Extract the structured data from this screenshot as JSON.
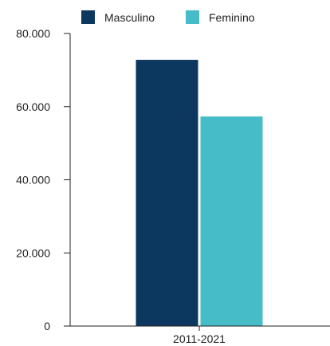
{
  "chart_data": {
    "type": "bar",
    "categories": [
      "2011-2021"
    ],
    "series": [
      {
        "name": "Masculino",
        "values": [
          72800
        ],
        "color": "#0c375e"
      },
      {
        "name": "Feminino",
        "values": [
          57300
        ],
        "color": "#45bcc8"
      }
    ],
    "title": "",
    "xlabel": "",
    "ylabel": "",
    "ylim": [
      0,
      80000
    ],
    "yticks": [
      {
        "value": 0,
        "label": "0"
      },
      {
        "value": 20000,
        "label": "20.000"
      },
      {
        "value": 40000,
        "label": "40.000"
      },
      {
        "value": 60000,
        "label": "60.000"
      },
      {
        "value": 80000,
        "label": "80.000"
      }
    ],
    "grid": false,
    "legend": "top"
  }
}
